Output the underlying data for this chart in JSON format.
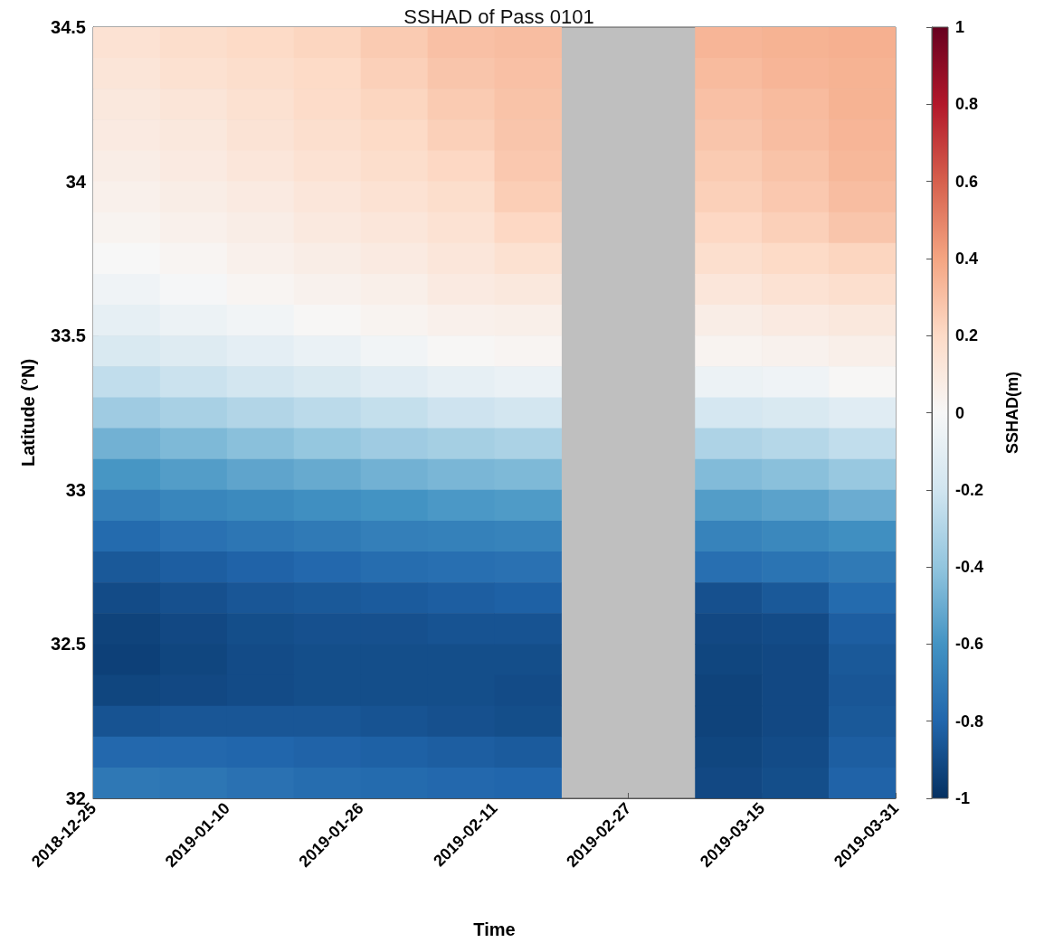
{
  "chart_data": {
    "type": "heatmap",
    "title": "SSHAD of Pass 0101",
    "xlabel": "Time",
    "ylabel": "Latitude (°N)",
    "clabel": "SSHAD(m)",
    "xlim": [
      "2018-12-25",
      "2019-03-31"
    ],
    "xticks": [
      "2018-12-25",
      "2019-01-10",
      "2019-01-26",
      "2019-02-11",
      "2019-02-27",
      "2019-03-15",
      "2019-03-31"
    ],
    "ylim": [
      32,
      34.5
    ],
    "yticks": [
      32,
      32.5,
      33,
      33.5,
      34,
      34.5
    ],
    "clim": [
      -1,
      1
    ],
    "cticks": [
      -1,
      -0.8,
      -0.6,
      -0.4,
      -0.2,
      0,
      0.2,
      0.4,
      0.6,
      0.8,
      1
    ],
    "cells": [
      [
        0.15,
        0.18,
        0.2,
        0.22,
        0.26,
        0.3,
        0.31,
        null,
        null,
        0.34,
        0.35,
        0.36
      ],
      [
        0.13,
        0.16,
        0.18,
        0.2,
        0.24,
        0.28,
        0.3,
        null,
        null,
        0.32,
        0.34,
        0.35
      ],
      [
        0.11,
        0.13,
        0.16,
        0.19,
        0.22,
        0.26,
        0.29,
        null,
        null,
        0.3,
        0.32,
        0.35
      ],
      [
        0.09,
        0.11,
        0.14,
        0.17,
        0.2,
        0.24,
        0.28,
        null,
        null,
        0.28,
        0.31,
        0.34
      ],
      [
        0.07,
        0.09,
        0.12,
        0.15,
        0.18,
        0.21,
        0.27,
        null,
        null,
        0.26,
        0.29,
        0.33
      ],
      [
        0.05,
        0.07,
        0.09,
        0.12,
        0.15,
        0.18,
        0.25,
        null,
        null,
        0.24,
        0.27,
        0.31
      ],
      [
        0.03,
        0.05,
        0.07,
        0.1,
        0.12,
        0.15,
        0.21,
        null,
        null,
        0.21,
        0.24,
        0.28
      ],
      [
        0.0,
        0.02,
        0.05,
        0.07,
        0.09,
        0.12,
        0.16,
        null,
        null,
        0.17,
        0.2,
        0.22
      ],
      [
        -0.04,
        -0.01,
        0.02,
        0.04,
        0.06,
        0.09,
        0.11,
        null,
        null,
        0.12,
        0.15,
        0.17
      ],
      [
        -0.09,
        -0.06,
        -0.03,
        0.01,
        0.03,
        0.05,
        0.06,
        null,
        null,
        0.07,
        0.09,
        0.11
      ],
      [
        -0.16,
        -0.13,
        -0.1,
        -0.07,
        -0.03,
        0.01,
        0.02,
        null,
        null,
        0.03,
        0.04,
        0.06
      ],
      [
        -0.25,
        -0.22,
        -0.19,
        -0.16,
        -0.12,
        -0.09,
        -0.07,
        null,
        null,
        -0.06,
        -0.04,
        0.01
      ],
      [
        -0.36,
        -0.33,
        -0.3,
        -0.27,
        -0.24,
        -0.21,
        -0.19,
        null,
        null,
        -0.18,
        -0.16,
        -0.12
      ],
      [
        -0.48,
        -0.45,
        -0.42,
        -0.39,
        -0.36,
        -0.34,
        -0.32,
        null,
        null,
        -0.31,
        -0.29,
        -0.25
      ],
      [
        -0.59,
        -0.56,
        -0.53,
        -0.51,
        -0.48,
        -0.46,
        -0.45,
        null,
        null,
        -0.44,
        -0.42,
        -0.38
      ],
      [
        -0.69,
        -0.66,
        -0.64,
        -0.62,
        -0.6,
        -0.58,
        -0.57,
        null,
        null,
        -0.56,
        -0.54,
        -0.5
      ],
      [
        -0.78,
        -0.75,
        -0.73,
        -0.71,
        -0.69,
        -0.68,
        -0.67,
        null,
        null,
        -0.67,
        -0.65,
        -0.62
      ],
      [
        -0.85,
        -0.83,
        -0.81,
        -0.79,
        -0.77,
        -0.76,
        -0.75,
        null,
        null,
        -0.76,
        -0.74,
        -0.71
      ],
      [
        -0.9,
        -0.88,
        -0.86,
        -0.85,
        -0.84,
        -0.83,
        -0.82,
        null,
        null,
        -0.88,
        -0.85,
        -0.78
      ],
      [
        -0.93,
        -0.91,
        -0.89,
        -0.88,
        -0.88,
        -0.87,
        -0.87,
        null,
        null,
        -0.91,
        -0.9,
        -0.83
      ],
      [
        -0.94,
        -0.92,
        -0.9,
        -0.89,
        -0.89,
        -0.89,
        -0.89,
        null,
        null,
        -0.92,
        -0.91,
        -0.85
      ],
      [
        -0.92,
        -0.91,
        -0.9,
        -0.89,
        -0.89,
        -0.89,
        -0.9,
        null,
        null,
        -0.93,
        -0.91,
        -0.86
      ],
      [
        -0.87,
        -0.86,
        -0.86,
        -0.86,
        -0.87,
        -0.88,
        -0.89,
        null,
        null,
        -0.93,
        -0.91,
        -0.85
      ],
      [
        -0.79,
        -0.79,
        -0.8,
        -0.81,
        -0.82,
        -0.83,
        -0.84,
        null,
        null,
        -0.92,
        -0.9,
        -0.83
      ],
      [
        -0.72,
        -0.73,
        -0.75,
        -0.77,
        -0.78,
        -0.79,
        -0.8,
        null,
        null,
        -0.91,
        -0.89,
        -0.81
      ]
    ]
  }
}
